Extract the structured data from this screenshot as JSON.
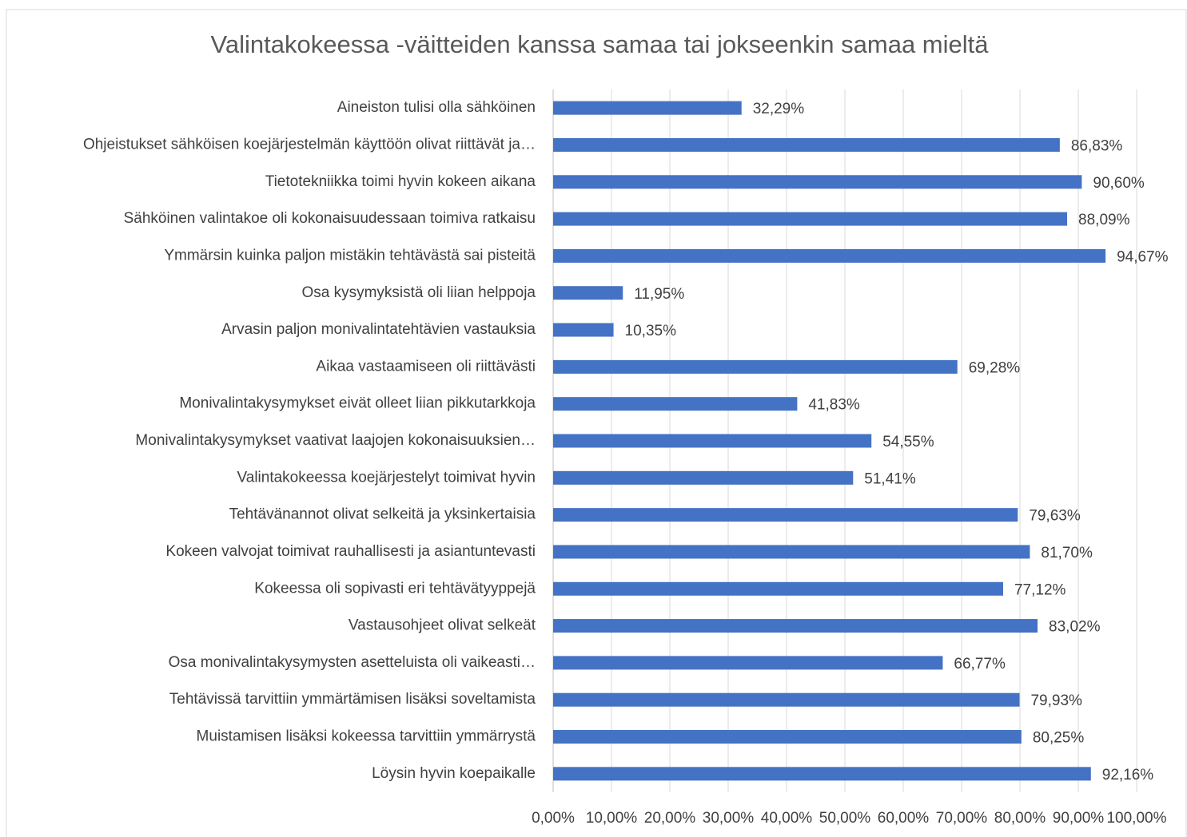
{
  "chart_data": {
    "type": "bar",
    "orientation": "horizontal",
    "title": "Valintakokeessa -väitteiden kanssa samaa tai jokseenkin samaa mieltä",
    "categories": [
      "Aineiston tulisi olla sähköinen",
      "Ohjeistukset sähköisen koejärjestelmän käyttöön olivat riittävät ja…",
      "Tietotekniikka toimi hyvin kokeen aikana",
      "Sähköinen valintakoe oli kokonaisuudessaan toimiva ratkaisu",
      "Ymmärsin kuinka paljon mistäkin tehtävästä sai pisteitä",
      "Osa kysymyksistä oli liian helppoja",
      "Arvasin paljon monivalintatehtävien vastauksia",
      "Aikaa vastaamiseen oli riittävästi",
      "Monivalintakysymykset eivät olleet liian pikkutarkkoja",
      "Monivalintakysymykset vaativat laajojen kokonaisuuksien…",
      "Valintakokeessa koejärjestelyt toimivat hyvin",
      "Tehtävänannot olivat selkeitä ja yksinkertaisia",
      "Kokeen valvojat toimivat rauhallisesti ja asiantuntevasti",
      "Kokeessa oli sopivasti eri tehtävätyyppejä",
      "Vastausohjeet olivat selkeät",
      "Osa monivalintakysymysten asetteluista oli vaikeasti…",
      "Tehtävissä tarvittiin ymmärtämisen lisäksi soveltamista",
      "Muistamisen lisäksi kokeessa tarvittiin ymmärrystä",
      "Löysin hyvin koepaikalle"
    ],
    "values": [
      32.29,
      86.83,
      90.6,
      88.09,
      94.67,
      11.95,
      10.35,
      69.28,
      41.83,
      54.55,
      51.41,
      79.63,
      81.7,
      77.12,
      83.02,
      66.77,
      79.93,
      80.25,
      92.16
    ],
    "value_labels": [
      "32,29%",
      "86,83%",
      "90,60%",
      "88,09%",
      "94,67%",
      "11,95%",
      "10,35%",
      "69,28%",
      "41,83%",
      "54,55%",
      "51,41%",
      "79,63%",
      "81,70%",
      "77,12%",
      "83,02%",
      "66,77%",
      "79,93%",
      "80,25%",
      "92,16%"
    ],
    "color": "#4472c4",
    "xlim": [
      0,
      100
    ],
    "xticks": [
      {
        "value": 0,
        "label": "0,00%"
      },
      {
        "value": 10,
        "label": "10,00%"
      },
      {
        "value": 20,
        "label": "20,00%"
      },
      {
        "value": 30,
        "label": "30,00%"
      },
      {
        "value": 40,
        "label": "40,00%"
      },
      {
        "value": 50,
        "label": "50,00%"
      },
      {
        "value": 60,
        "label": "60,00%"
      },
      {
        "value": 70,
        "label": "70,00%"
      },
      {
        "value": 80,
        "label": "80,00%"
      },
      {
        "value": 90,
        "label": "90,00%"
      },
      {
        "value": 100,
        "label": "100,00%"
      }
    ],
    "grid": true
  }
}
